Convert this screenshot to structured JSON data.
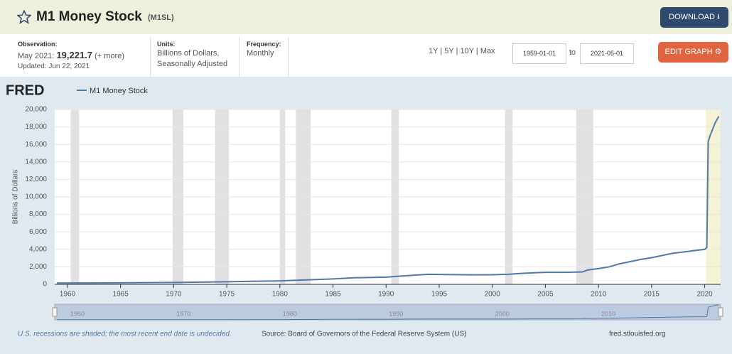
{
  "header": {
    "title": "M1 Money Stock",
    "series_id": "(M1SL)",
    "download": "DOWNLOAD"
  },
  "info": {
    "observation_label": "Observation:",
    "observation_date": "May 2021:",
    "observation_value": "19,221.7",
    "more": "(+ more)",
    "updated": "Updated: Jun 22, 2021",
    "units_label": "Units:",
    "units": [
      "Billions of Dollars,",
      "Seasonally Adjusted"
    ],
    "frequency_label": "Frequency:",
    "frequency": "Monthly"
  },
  "controls": {
    "ranges": [
      "1Y",
      "5Y",
      "10Y",
      "Max"
    ],
    "start": "1959-01-01",
    "to": "to",
    "end": "2021-05-01",
    "edit": "EDIT GRAPH"
  },
  "chart_data": {
    "type": "line",
    "logo": "FRED",
    "ylabel": "Billions of Dollars",
    "x": [
      1959,
      1965,
      1970,
      1975,
      1980,
      1985,
      1987,
      1990,
      1992,
      1994,
      1995,
      1998,
      2000,
      2001.5,
      2003,
      2005,
      2007,
      2008.5,
      2009,
      2010,
      2011,
      2012,
      2013,
      2014,
      2015,
      2016,
      2017,
      2018,
      2019,
      2020,
      2020.2,
      2020.33,
      2020.5,
      2021,
      2021.33
    ],
    "series": [
      {
        "name": "M1 Money Stock",
        "color": "#4f7aa5",
        "values": [
          140,
          170,
          210,
          290,
          400,
          620,
          750,
          820,
          1000,
          1150,
          1130,
          1090,
          1100,
          1150,
          1270,
          1370,
          1370,
          1420,
          1650,
          1800,
          2000,
          2350,
          2600,
          2850,
          3050,
          3300,
          3550,
          3700,
          3850,
          4000,
          4200,
          16300,
          17000,
          18500,
          19221.7
        ]
      }
    ],
    "xlim": [
      1958.8,
      2021.5
    ],
    "xticks": [
      1960,
      1965,
      1970,
      1975,
      1980,
      1985,
      1990,
      1995,
      2000,
      2005,
      2010,
      2015,
      2020
    ],
    "ylim": [
      0,
      20000
    ],
    "yticks": [
      0,
      {
        "value": 2000,
        "label": "2,000"
      },
      {
        "value": 4000,
        "label": "4,000"
      },
      {
        "value": 6000,
        "label": "6,000"
      },
      {
        "value": 8000,
        "label": "8,000"
      },
      {
        "value": 10000,
        "label": "10,000"
      },
      {
        "value": 12000,
        "label": "12,000"
      },
      {
        "value": 14000,
        "label": "14,000"
      },
      {
        "value": 16000,
        "label": "16,000"
      },
      {
        "value": 18000,
        "label": "18,000"
      },
      {
        "value": 20000,
        "label": "20,000"
      }
    ],
    "grid": true,
    "recessions": [
      [
        1960.3,
        1961.1
      ],
      [
        1969.9,
        1970.9
      ],
      [
        1973.9,
        1975.2
      ],
      [
        1980.0,
        1980.5
      ],
      [
        1981.5,
        1982.9
      ],
      [
        1990.5,
        1991.2
      ],
      [
        2001.2,
        2001.9
      ],
      [
        2007.9,
        2009.5
      ]
    ],
    "recession_color": "#e1e1e1",
    "undecided_recession": [
      2020.1,
      2021.5
    ],
    "undecided_color": "#f5f3d6",
    "navigator_ticks": [
      1960,
      1970,
      1980,
      1990,
      2000,
      2010
    ]
  },
  "footer": {
    "note": "U.S. recessions are shaded; the most recent end date is undecided.",
    "source": "Source: Board of Governors of the Federal Reserve System (US)",
    "site": "fred.stlouisfed.org"
  }
}
